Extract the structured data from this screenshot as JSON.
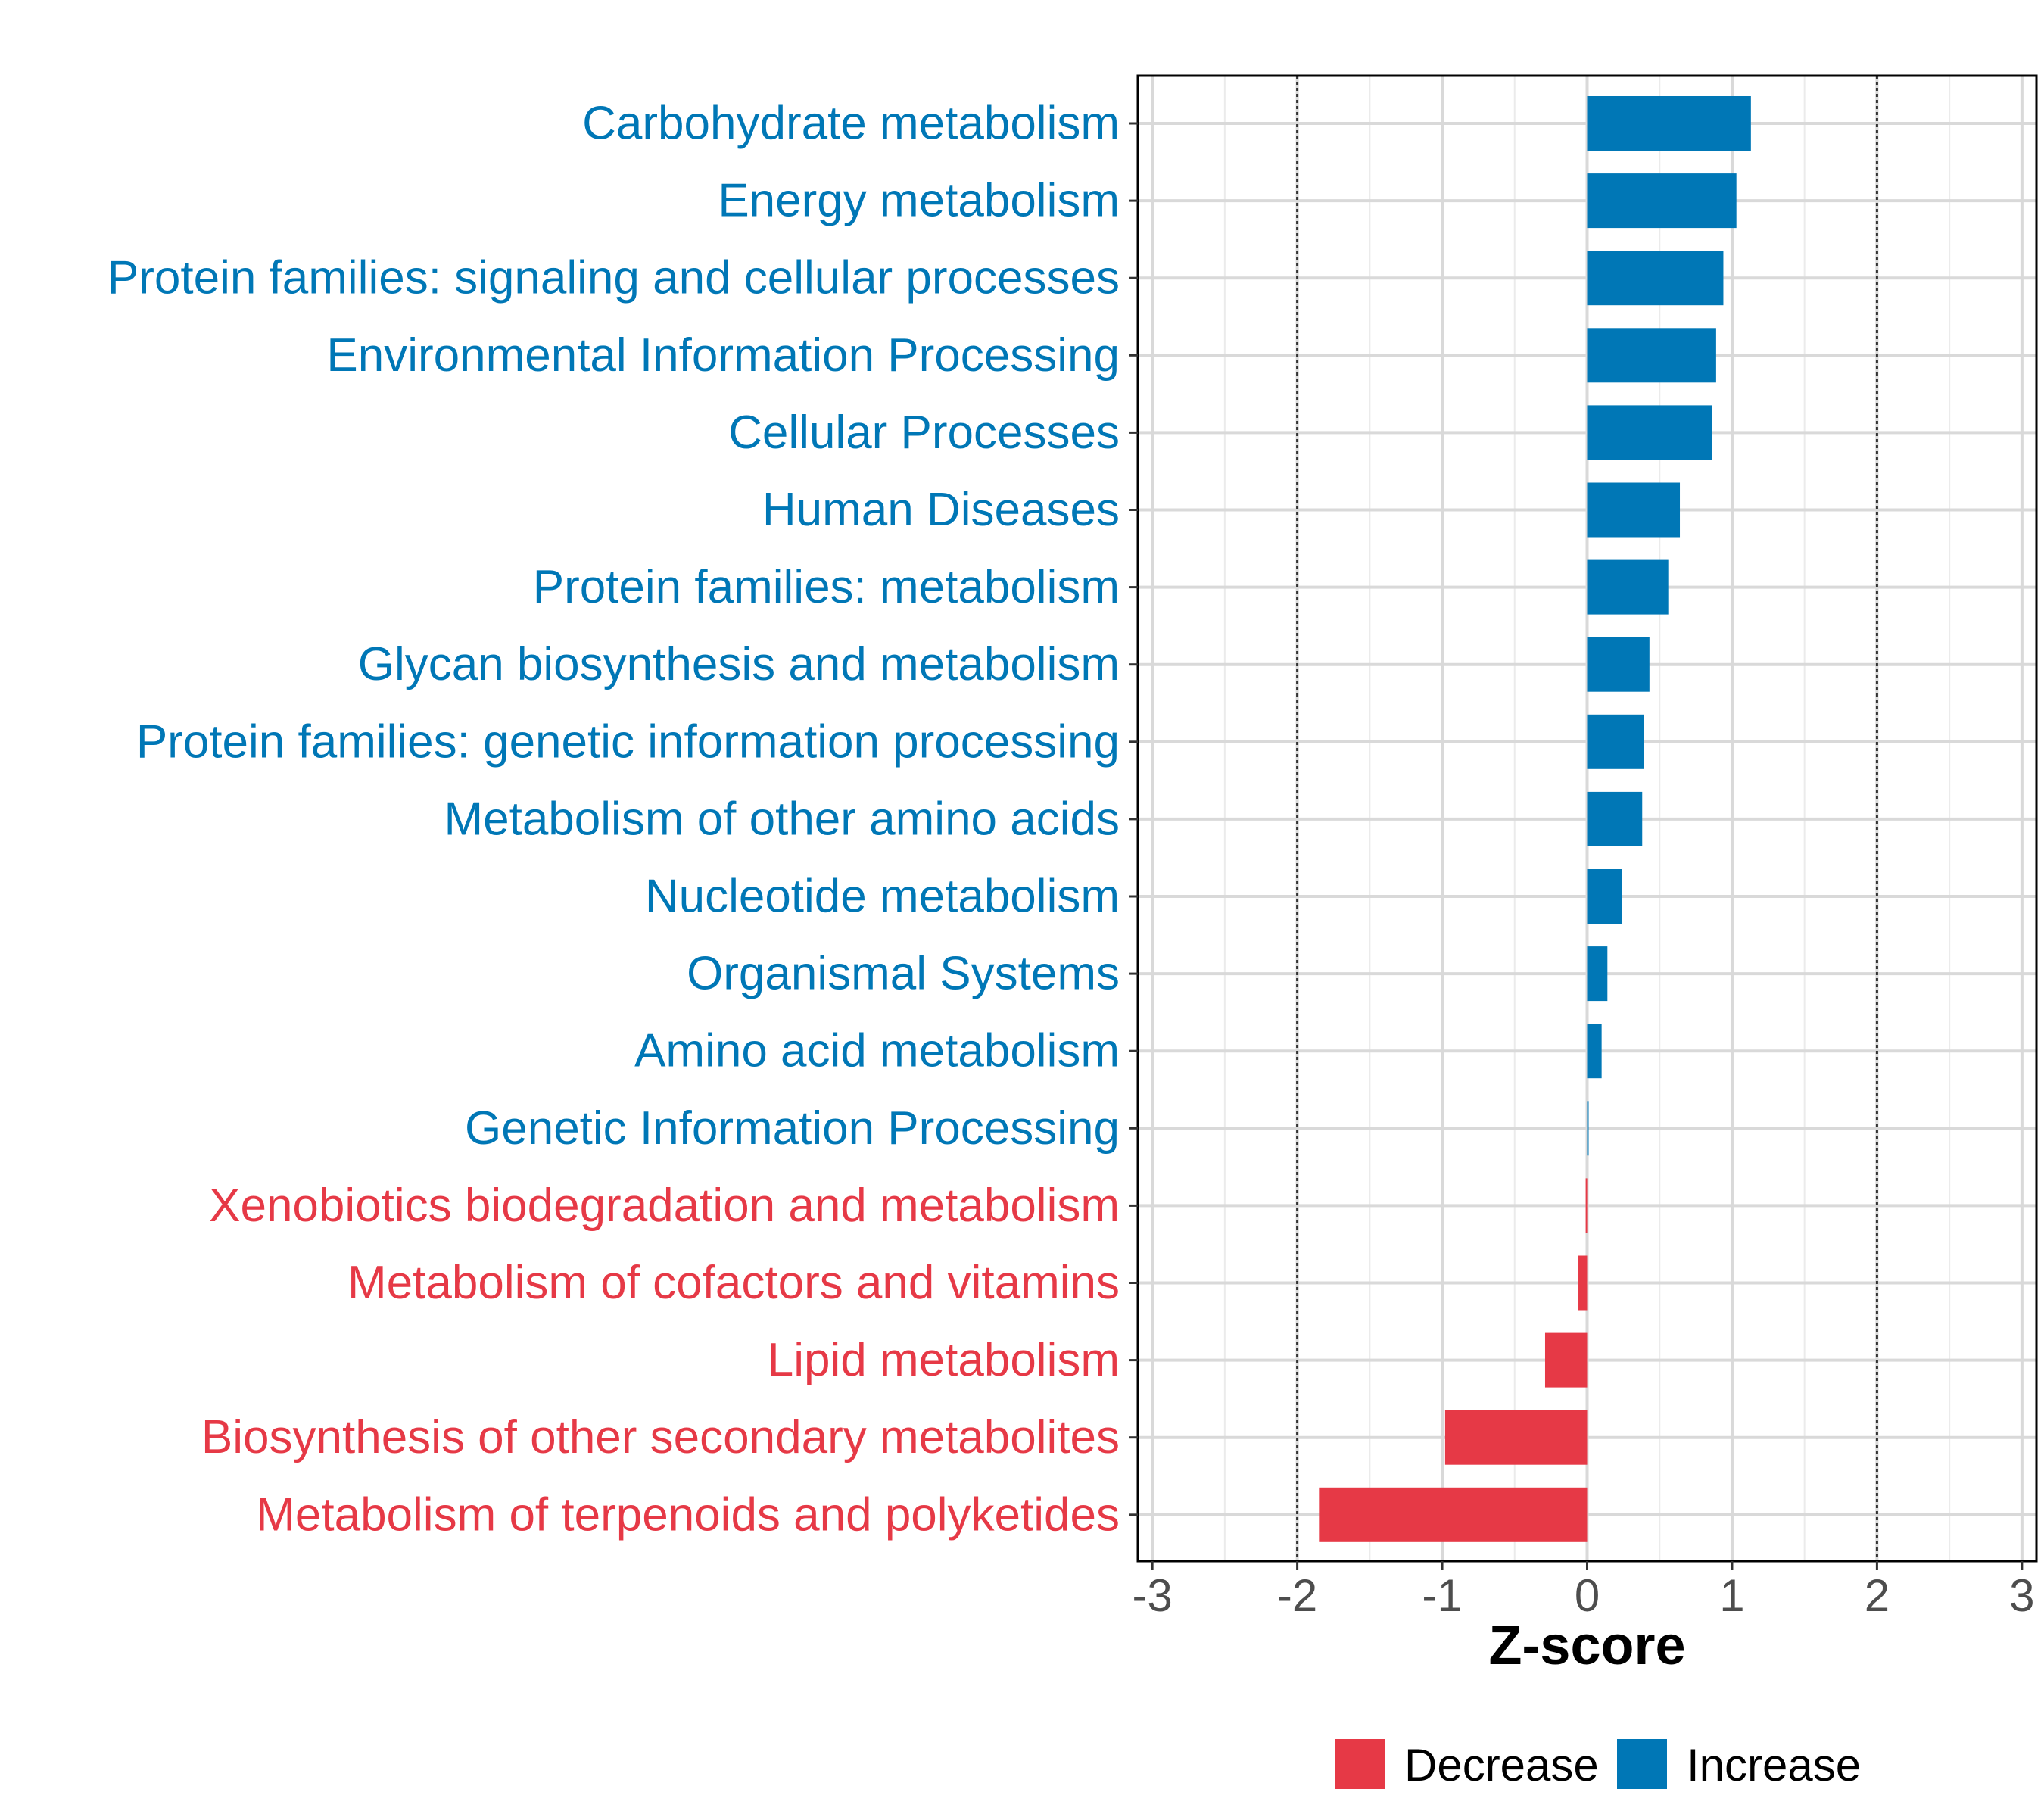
{
  "chart_data": {
    "type": "bar",
    "orientation": "horizontal",
    "xlabel": "Z-score",
    "ylabel": "",
    "xlim": [
      -3.1,
      3.1
    ],
    "xticks": [
      -3,
      -2,
      -1,
      0,
      1,
      2,
      3
    ],
    "tick_labels": [
      "-3",
      "-2",
      "-1",
      "0",
      "1",
      "2",
      "3"
    ],
    "reference_lines": [
      -2,
      2
    ],
    "grid": true,
    "legend_position": "bottom",
    "legend": [
      {
        "name": "Decrease",
        "color": "#E63946"
      },
      {
        "name": "Increase",
        "color": "#0077B6"
      }
    ],
    "categories": [
      "Carbohydrate metabolism",
      "Energy metabolism",
      "Protein families: signaling and cellular processes",
      "Environmental Information Processing",
      "Cellular Processes",
      "Human Diseases",
      "Protein families: metabolism",
      "Glycan biosynthesis and metabolism",
      "Protein families: genetic information processing",
      "Metabolism of other amino acids",
      "Nucleotide metabolism",
      "Organismal Systems",
      "Amino acid metabolism",
      "Genetic Information Processing",
      "Xenobiotics biodegradation and metabolism",
      "Metabolism of cofactors and vitamins",
      "Lipid metabolism",
      "Biosynthesis of other secondary metabolites",
      "Metabolism of terpenoids and polyketides"
    ],
    "values": [
      1.13,
      1.03,
      0.94,
      0.89,
      0.86,
      0.64,
      0.56,
      0.43,
      0.39,
      0.38,
      0.24,
      0.14,
      0.1,
      0.01,
      -0.01,
      -0.06,
      -0.29,
      -0.98,
      -1.85
    ],
    "groups": [
      "Increase",
      "Increase",
      "Increase",
      "Increase",
      "Increase",
      "Increase",
      "Increase",
      "Increase",
      "Increase",
      "Increase",
      "Increase",
      "Increase",
      "Increase",
      "Increase",
      "Decrease",
      "Decrease",
      "Decrease",
      "Decrease",
      "Decrease"
    ]
  }
}
